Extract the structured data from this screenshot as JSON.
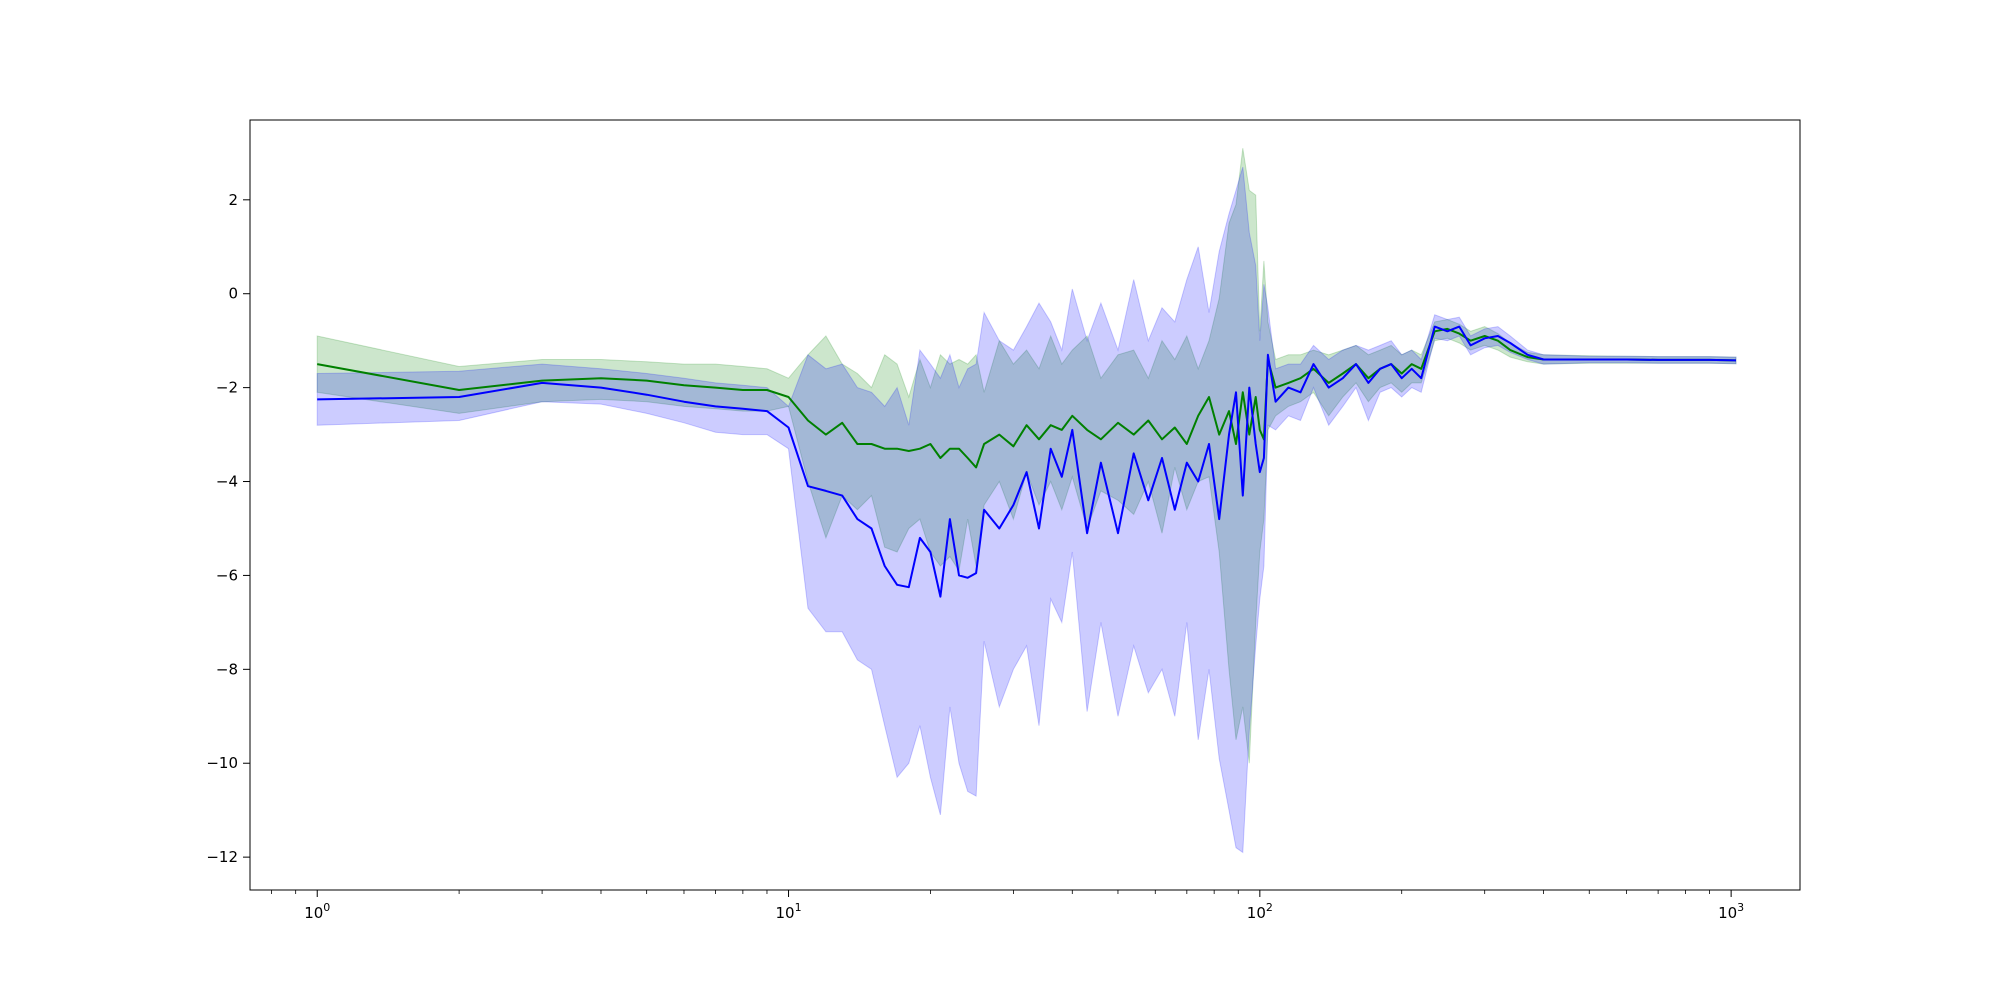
{
  "chart_data": {
    "type": "line",
    "xscale": "log",
    "xlim": [
      0.72,
      1400
    ],
    "ylim": [
      -12.7,
      3.7
    ],
    "grid": false,
    "legend": "none",
    "x_ticks": [
      {
        "value": 1,
        "base": "10",
        "exp": "0"
      },
      {
        "value": 10,
        "base": "10",
        "exp": "1"
      },
      {
        "value": 100,
        "base": "10",
        "exp": "2"
      },
      {
        "value": 1000,
        "base": "10",
        "exp": "3"
      }
    ],
    "y_ticks": [
      {
        "value": 2,
        "label": "2"
      },
      {
        "value": 0,
        "label": "0"
      },
      {
        "value": -2,
        "label": "−2"
      },
      {
        "value": -4,
        "label": "−4"
      },
      {
        "value": -6,
        "label": "−6"
      },
      {
        "value": -8,
        "label": "−8"
      },
      {
        "value": -10,
        "label": "−10"
      },
      {
        "value": -12,
        "label": "−12"
      }
    ],
    "series": [
      {
        "color": "#008000",
        "band_color": "#008000",
        "band_opacity": 0.2,
        "points": [
          [
            1,
            -1.5,
            -2.1,
            -0.9
          ],
          [
            2,
            -2.05,
            -2.55,
            -1.55
          ],
          [
            3,
            -1.85,
            -2.3,
            -1.4
          ],
          [
            4,
            -1.8,
            -2.25,
            -1.4
          ],
          [
            5,
            -1.85,
            -2.3,
            -1.45
          ],
          [
            6,
            -1.95,
            -2.4,
            -1.5
          ],
          [
            7,
            -2.0,
            -2.45,
            -1.5
          ],
          [
            8,
            -2.05,
            -2.5,
            -1.55
          ],
          [
            9,
            -2.05,
            -2.5,
            -1.6
          ],
          [
            10,
            -2.2,
            -2.4,
            -1.8
          ],
          [
            11,
            -2.7,
            -4.0,
            -1.3
          ],
          [
            12,
            -3.0,
            -5.2,
            -0.9
          ],
          [
            13,
            -2.75,
            -4.3,
            -1.5
          ],
          [
            14,
            -3.2,
            -4.6,
            -1.7
          ],
          [
            15,
            -3.2,
            -4.3,
            -2.0
          ],
          [
            16,
            -3.3,
            -5.4,
            -1.3
          ],
          [
            17,
            -3.3,
            -5.5,
            -1.5
          ],
          [
            18,
            -3.35,
            -5.0,
            -2.2
          ],
          [
            19,
            -3.3,
            -4.8,
            -1.4
          ],
          [
            20,
            -3.2,
            -5.5,
            -2.0
          ],
          [
            21,
            -3.5,
            -5.8,
            -1.3
          ],
          [
            22,
            -3.3,
            -5.6,
            -1.5
          ],
          [
            23,
            -3.3,
            -5.9,
            -1.4
          ],
          [
            24,
            -3.5,
            -4.8,
            -1.5
          ],
          [
            25,
            -3.7,
            -5.8,
            -1.3
          ],
          [
            26,
            -3.2,
            -4.5,
            -2.1
          ],
          [
            28,
            -3.0,
            -4.0,
            -1.0
          ],
          [
            30,
            -3.25,
            -4.8,
            -1.5
          ],
          [
            32,
            -2.8,
            -3.8,
            -1.2
          ],
          [
            34,
            -3.1,
            -4.5,
            -1.6
          ],
          [
            36,
            -2.8,
            -4.0,
            -0.9
          ],
          [
            38,
            -2.9,
            -4.6,
            -1.5
          ],
          [
            40,
            -2.6,
            -3.9,
            -1.2
          ],
          [
            43,
            -2.9,
            -5.0,
            -0.9
          ],
          [
            46,
            -3.1,
            -4.2,
            -1.8
          ],
          [
            50,
            -2.75,
            -4.4,
            -1.3
          ],
          [
            54,
            -3.0,
            -4.7,
            -1.2
          ],
          [
            58,
            -2.7,
            -4.0,
            -1.8
          ],
          [
            62,
            -3.1,
            -5.1,
            -1.0
          ],
          [
            66,
            -2.85,
            -3.7,
            -1.4
          ],
          [
            70,
            -3.2,
            -4.6,
            -0.9
          ],
          [
            74,
            -2.6,
            -4.0,
            -1.6
          ],
          [
            78,
            -2.2,
            -3.9,
            -1.0
          ],
          [
            82,
            -3.0,
            -5.5,
            -0.1
          ],
          [
            86,
            -2.5,
            -8.0,
            1.5
          ],
          [
            89,
            -3.2,
            -9.5,
            1.9
          ],
          [
            92,
            -2.1,
            -8.8,
            3.1
          ],
          [
            95,
            -3.0,
            -10.0,
            2.2
          ],
          [
            98,
            -2.2,
            -7.0,
            2.1
          ],
          [
            100,
            -2.9,
            -5.5,
            -0.8
          ],
          [
            102,
            -3.1,
            -4.8,
            0.7
          ],
          [
            104,
            -1.4,
            -2.9,
            -0.6
          ],
          [
            108,
            -2.0,
            -2.6,
            -1.4
          ],
          [
            115,
            -1.9,
            -2.4,
            -1.3
          ],
          [
            122,
            -1.8,
            -2.3,
            -1.3
          ],
          [
            130,
            -1.6,
            -2.1,
            -1.2
          ],
          [
            140,
            -1.9,
            -2.6,
            -1.3
          ],
          [
            150,
            -1.7,
            -2.2,
            -1.2
          ],
          [
            160,
            -1.5,
            -1.9,
            -1.1
          ],
          [
            170,
            -1.8,
            -2.3,
            -1.3
          ],
          [
            180,
            -1.6,
            -2.0,
            -1.2
          ],
          [
            190,
            -1.5,
            -1.9,
            -1.1
          ],
          [
            200,
            -1.7,
            -2.1,
            -1.3
          ],
          [
            210,
            -1.5,
            -1.9,
            -1.2
          ],
          [
            220,
            -1.6,
            -1.9,
            -1.3
          ],
          [
            235,
            -0.8,
            -1.0,
            -0.6
          ],
          [
            250,
            -0.75,
            -0.95,
            -0.55
          ],
          [
            265,
            -0.85,
            -1.05,
            -0.65
          ],
          [
            280,
            -1.0,
            -1.2,
            -0.8
          ],
          [
            300,
            -0.9,
            -1.1,
            -0.7
          ],
          [
            320,
            -1.0,
            -1.2,
            -0.85
          ],
          [
            340,
            -1.2,
            -1.35,
            -1.05
          ],
          [
            370,
            -1.35,
            -1.45,
            -1.25
          ],
          [
            400,
            -1.4,
            -1.5,
            -1.3
          ],
          [
            500,
            -1.4,
            -1.48,
            -1.32
          ],
          [
            600,
            -1.4,
            -1.48,
            -1.33
          ],
          [
            700,
            -1.41,
            -1.48,
            -1.34
          ],
          [
            800,
            -1.41,
            -1.48,
            -1.34
          ],
          [
            900,
            -1.41,
            -1.48,
            -1.34
          ],
          [
            1024,
            -1.42,
            -1.49,
            -1.35
          ]
        ]
      },
      {
        "color": "#0000ff",
        "band_color": "#0000ff",
        "band_opacity": 0.2,
        "points": [
          [
            1,
            -2.25,
            -2.8,
            -1.7
          ],
          [
            2,
            -2.2,
            -2.7,
            -1.65
          ],
          [
            3,
            -1.9,
            -2.3,
            -1.5
          ],
          [
            4,
            -2.0,
            -2.35,
            -1.6
          ],
          [
            5,
            -2.15,
            -2.55,
            -1.7
          ],
          [
            6,
            -2.3,
            -2.75,
            -1.8
          ],
          [
            7,
            -2.4,
            -2.95,
            -1.9
          ],
          [
            8,
            -2.45,
            -3.0,
            -1.95
          ],
          [
            9,
            -2.5,
            -3.0,
            -2.0
          ],
          [
            10,
            -2.85,
            -3.3,
            -2.4
          ],
          [
            11,
            -4.1,
            -6.7,
            -1.3
          ],
          [
            12,
            -4.2,
            -7.2,
            -1.6
          ],
          [
            13,
            -4.3,
            -7.2,
            -1.5
          ],
          [
            14,
            -4.8,
            -7.8,
            -2.0
          ],
          [
            15,
            -5.0,
            -8.0,
            -2.1
          ],
          [
            16,
            -5.8,
            -9.2,
            -2.4
          ],
          [
            17,
            -6.2,
            -10.3,
            -2.0
          ],
          [
            18,
            -6.25,
            -10.0,
            -2.8
          ],
          [
            19,
            -5.2,
            -9.2,
            -1.2
          ],
          [
            20,
            -5.5,
            -10.3,
            -1.5
          ],
          [
            21,
            -6.45,
            -11.1,
            -1.8
          ],
          [
            22,
            -4.8,
            -8.8,
            -1.3
          ],
          [
            23,
            -6.0,
            -10.0,
            -2.0
          ],
          [
            24,
            -6.05,
            -10.6,
            -1.6
          ],
          [
            25,
            -5.95,
            -10.7,
            -1.5
          ],
          [
            26,
            -4.6,
            -7.4,
            -0.4
          ],
          [
            28,
            -5.0,
            -8.8,
            -1.0
          ],
          [
            30,
            -4.5,
            -8.0,
            -1.2
          ],
          [
            32,
            -3.8,
            -7.5,
            -0.7
          ],
          [
            34,
            -5.0,
            -9.2,
            -0.2
          ],
          [
            36,
            -3.3,
            -6.5,
            -0.6
          ],
          [
            38,
            -3.9,
            -7.0,
            -1.2
          ],
          [
            40,
            -2.9,
            -5.5,
            0.1
          ],
          [
            43,
            -5.1,
            -8.9,
            -1.0
          ],
          [
            46,
            -3.6,
            -7.0,
            -0.2
          ],
          [
            50,
            -5.1,
            -9.0,
            -1.2
          ],
          [
            54,
            -3.4,
            -7.5,
            0.3
          ],
          [
            58,
            -4.4,
            -8.5,
            -1.0
          ],
          [
            62,
            -3.5,
            -8.0,
            -0.3
          ],
          [
            66,
            -4.6,
            -9.0,
            -0.6
          ],
          [
            70,
            -3.6,
            -7.0,
            0.3
          ],
          [
            74,
            -4.0,
            -9.5,
            1.0
          ],
          [
            78,
            -3.2,
            -8.0,
            -0.4
          ],
          [
            82,
            -4.8,
            -9.9,
            0.9
          ],
          [
            86,
            -3.0,
            -11.0,
            1.7
          ],
          [
            89,
            -2.1,
            -11.8,
            2.2
          ],
          [
            92,
            -4.3,
            -11.9,
            2.7
          ],
          [
            95,
            -2.0,
            -9.3,
            1.3
          ],
          [
            98,
            -3.2,
            -7.5,
            0.6
          ],
          [
            100,
            -3.8,
            -6.5,
            -1.0
          ],
          [
            102,
            -3.5,
            -5.8,
            0.2
          ],
          [
            104,
            -1.3,
            -2.8,
            -0.3
          ],
          [
            108,
            -2.3,
            -2.9,
            -1.6
          ],
          [
            115,
            -2.0,
            -2.6,
            -1.5
          ],
          [
            122,
            -2.1,
            -2.7,
            -1.5
          ],
          [
            130,
            -1.5,
            -2.0,
            -1.1
          ],
          [
            140,
            -2.0,
            -2.8,
            -1.4
          ],
          [
            150,
            -1.8,
            -2.4,
            -1.2
          ],
          [
            160,
            -1.5,
            -2.0,
            -1.1
          ],
          [
            170,
            -1.9,
            -2.7,
            -1.2
          ],
          [
            180,
            -1.6,
            -2.1,
            -1.1
          ],
          [
            190,
            -1.5,
            -2.0,
            -1.0
          ],
          [
            200,
            -1.8,
            -2.2,
            -1.3
          ],
          [
            210,
            -1.6,
            -2.0,
            -1.2
          ],
          [
            220,
            -1.8,
            -2.1,
            -1.4
          ],
          [
            235,
            -0.7,
            -0.95,
            -0.45
          ],
          [
            250,
            -0.8,
            -1.0,
            -0.55
          ],
          [
            265,
            -0.7,
            -0.9,
            -0.5
          ],
          [
            280,
            -1.1,
            -1.3,
            -0.9
          ],
          [
            300,
            -0.95,
            -1.15,
            -0.75
          ],
          [
            320,
            -0.9,
            -1.1,
            -0.7
          ],
          [
            340,
            -1.05,
            -1.25,
            -0.9
          ],
          [
            370,
            -1.3,
            -1.4,
            -1.2
          ],
          [
            400,
            -1.4,
            -1.5,
            -1.3
          ],
          [
            500,
            -1.4,
            -1.47,
            -1.33
          ],
          [
            600,
            -1.4,
            -1.47,
            -1.33
          ],
          [
            700,
            -1.41,
            -1.48,
            -1.34
          ],
          [
            800,
            -1.41,
            -1.48,
            -1.34
          ],
          [
            900,
            -1.41,
            -1.48,
            -1.34
          ],
          [
            1024,
            -1.42,
            -1.49,
            -1.35
          ]
        ]
      }
    ]
  }
}
